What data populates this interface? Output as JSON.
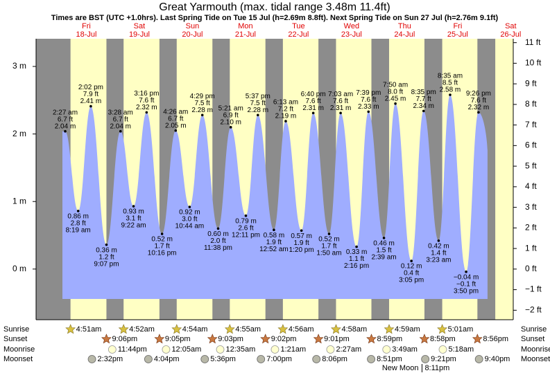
{
  "chart_data": {
    "type": "area",
    "title": "Great Yarmouth (max. tidal range 3.48m 11.4ft)",
    "subtitle": "Times are BST (UTC +1.0hrs). Last Spring Tide on Tue 15 Jul (h=2.69m 8.8ft). Next Spring Tide on Sun 27 Jul (h=2.76m 9.1ft)",
    "day_names": [
      "Fri",
      "Sat",
      "Sun",
      "Mon",
      "Tue",
      "Wed",
      "Thu",
      "Fri",
      "Sat"
    ],
    "day_dates": [
      "18-Jul",
      "19-Jul",
      "20-Jul",
      "21-Jul",
      "22-Jul",
      "23-Jul",
      "24-Jul",
      "25-Jul",
      "26-Jul"
    ],
    "ylim": [
      -0.75,
      3.41
    ],
    "yticks": [
      {
        "value": 3,
        "label": "3 m"
      },
      {
        "value": 2,
        "label": "2 m"
      },
      {
        "value": 1,
        "label": "1 m"
      },
      {
        "value": 0,
        "label": "0 m"
      }
    ],
    "y2lim": [
      -2.46,
      11.19
    ],
    "y2ticks": [
      {
        "value": 11,
        "label": "11 ft"
      },
      {
        "value": 10,
        "label": "10 ft"
      },
      {
        "value": 9,
        "label": "9 ft"
      },
      {
        "value": 8,
        "label": "8 ft"
      },
      {
        "value": 7,
        "label": "7 ft"
      },
      {
        "value": 6,
        "label": "6 ft"
      },
      {
        "value": 5,
        "label": "5 ft"
      },
      {
        "value": 4,
        "label": "4 ft"
      },
      {
        "value": 3,
        "label": "3 ft"
      },
      {
        "value": 2,
        "label": "2 ft"
      },
      {
        "value": 1,
        "label": "1 ft"
      },
      {
        "value": 0,
        "label": "0 ft"
      },
      {
        "value": -1,
        "label": "−1 ft"
      },
      {
        "value": -2,
        "label": "−2 ft"
      }
    ],
    "series": [
      {
        "name": "Tide height",
        "color": "#9fadff",
        "x": [
          "2:27 am",
          "8:19 am",
          "2:02 pm",
          "9:07 pm",
          "3:28 am",
          "9:22 am",
          "3:16 pm",
          "10:16 pm",
          "4:26 am",
          "10:44 am",
          "4:29 pm",
          "11:38 pm",
          "5:21 am",
          "12:11 pm",
          "5:37 pm",
          "12:52 am",
          "6:13 am",
          "1:20 pm",
          "6:40 pm",
          "1:50 am",
          "7:03 am",
          "2:16 pm",
          "7:39 pm",
          "2:39 am",
          "7:50 am",
          "3:05 pm",
          "8:35 pm",
          "3:23 am",
          "8:35 am",
          "3:50 pm",
          "9:26 pm"
        ],
        "values": [
          2.04,
          0.86,
          2.41,
          0.36,
          2.04,
          0.93,
          2.32,
          0.52,
          2.05,
          0.92,
          2.28,
          0.6,
          2.1,
          0.79,
          2.28,
          0.58,
          2.19,
          0.57,
          2.31,
          0.52,
          2.31,
          0.33,
          2.33,
          0.46,
          2.45,
          0.12,
          2.34,
          0.42,
          2.58,
          -0.04,
          2.32
        ],
        "value_labels": [
          "2.04 m",
          "0.86 m",
          "2.41 m",
          "0.36 m",
          "2.04 m",
          "0.93 m",
          "2.32 m",
          "0.52 m",
          "2.05 m",
          "0.92 m",
          "2.28 m",
          "0.60 m",
          "2.10 m",
          "0.79 m",
          "2.28 m",
          "0.58 m",
          "2.19 m",
          "0.57 m",
          "2.31 m",
          "0.52 m",
          "2.31 m",
          "0.33 m",
          "2.33 m",
          "0.46 m",
          "2.45 m",
          "0.12 m",
          "2.34 m",
          "0.42 m",
          "2.58 m",
          "−0.04 m",
          "2.32 m"
        ],
        "ft_labels": [
          "6.7 ft",
          "2.8 ft",
          "7.9 ft",
          "1.2 ft",
          "6.7 ft",
          "3.1 ft",
          "7.6 ft",
          "1.7 ft",
          "6.7 ft",
          "3.0 ft",
          "7.5 ft",
          "2.0 ft",
          "6.9 ft",
          "2.6 ft",
          "7.5 ft",
          "1.9 ft",
          "7.2 ft",
          "1.9 ft",
          "7.6 ft",
          "1.7 ft",
          "7.6 ft",
          "1.1 ft",
          "7.6 ft",
          "1.5 ft",
          "8.0 ft",
          "0.4 ft",
          "7.7 ft",
          "1.4 ft",
          "8.5 ft",
          "−0.1 ft",
          "7.6 ft"
        ]
      }
    ],
    "rows": [
      {
        "name": "Sunrise",
        "times": [
          "4:51am",
          "4:52am",
          "4:54am",
          "4:55am",
          "4:56am",
          "4:58am",
          "4:59am",
          "5:01am"
        ]
      },
      {
        "name": "Sunset",
        "times": [
          "9:06pm",
          "9:05pm",
          "9:03pm",
          "9:02pm",
          "9:01pm",
          "8:59pm",
          "8:58pm",
          "8:56pm"
        ]
      },
      {
        "name": "Moonrise",
        "times": [
          "11:44pm",
          null,
          "12:05am",
          "12:35am",
          "1:21am",
          "2:27am",
          "3:49am",
          "5:18am"
        ]
      },
      {
        "name": "Moonset",
        "times": [
          "2:32pm",
          "4:04pm",
          "5:36pm",
          "7:00pm",
          "8:06pm",
          "8:51pm",
          "9:21pm",
          "9:40pm"
        ]
      }
    ],
    "moon_phase": {
      "name": "New Moon",
      "time": "8:11pm"
    }
  }
}
